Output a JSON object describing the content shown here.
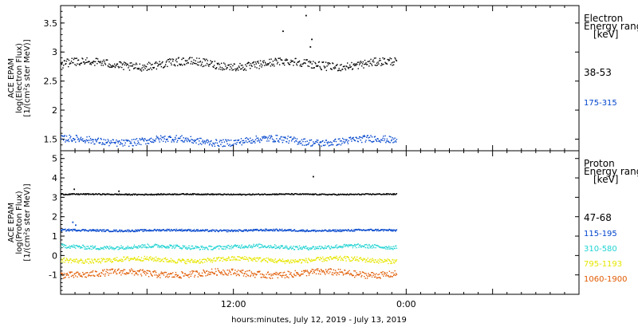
{
  "xlabel": "hours:minutes, July 12, 2019 - July 13, 2019",
  "x_ticks": [
    {
      "label": "12:00",
      "hour": 12
    },
    {
      "label": "0:00",
      "hour": 24
    }
  ],
  "chart_data": [
    {
      "type": "scatter",
      "panel": "electron",
      "ylabel": [
        "ACE EPAM",
        "log(Electron Flux)",
        "[1/(cm²s ster MeV)]"
      ],
      "ylim": [
        1.3,
        3.8
      ],
      "yticks": [
        1.5,
        2.0,
        2.5,
        3.0,
        3.5
      ],
      "xlim_hours": [
        0,
        36
      ],
      "legend": {
        "title": [
          "Electron",
          "Energy ranges",
          "[keV]"
        ]
      },
      "series": [
        {
          "name": "38-53",
          "color": "#000000",
          "base": 2.8,
          "amp": 0.05,
          "noise": 0.07,
          "x_start_hours": 0,
          "x_end_hours": 23.3,
          "outliers": [
            {
              "x": 15.4,
              "y": 3.37
            },
            {
              "x": 17.0,
              "y": 3.64
            },
            {
              "x": 17.4,
              "y": 3.23
            },
            {
              "x": 17.3,
              "y": 3.1
            }
          ]
        },
        {
          "name": "175-315",
          "color": "#0044cc",
          "base": 1.48,
          "amp": 0.04,
          "noise": 0.06,
          "x_start_hours": 0,
          "x_end_hours": 23.3,
          "outliers": []
        }
      ]
    },
    {
      "type": "scatter",
      "panel": "proton",
      "ylabel": [
        "ACE EPAM",
        "log(Proton Flux)",
        "[1/(cm²s ster MeV)]"
      ],
      "ylim": [
        -2.0,
        5.4
      ],
      "yticks": [
        -1,
        0,
        1,
        2,
        3,
        4,
        5
      ],
      "xlim_hours": [
        0,
        36
      ],
      "legend": {
        "title": [
          "Proton",
          "Energy ranges",
          "[keV]"
        ]
      },
      "series": [
        {
          "name": "47-68",
          "color": "#000000",
          "base": 3.18,
          "amp": 0.01,
          "noise": 0.03,
          "x_start_hours": 0,
          "x_end_hours": 23.3,
          "outliers": [
            {
              "x": 0.9,
              "y": 3.45
            },
            {
              "x": 4.0,
              "y": 3.35
            },
            {
              "x": 17.5,
              "y": 4.1
            }
          ]
        },
        {
          "name": "115-195",
          "color": "#0044cc",
          "base": 1.32,
          "amp": 0.02,
          "noise": 0.05,
          "x_start_hours": 0,
          "x_end_hours": 23.3,
          "outliers": [
            {
              "x": 0.8,
              "y": 1.75
            },
            {
              "x": 1.0,
              "y": 1.6
            }
          ]
        },
        {
          "name": "310-580",
          "color": "#22d3d3",
          "base": 0.47,
          "amp": 0.05,
          "noise": 0.1,
          "x_start_hours": 0,
          "x_end_hours": 23.3,
          "outliers": []
        },
        {
          "name": "795-1193",
          "color": "#e6e600",
          "base": -0.2,
          "amp": 0.07,
          "noise": 0.12,
          "x_start_hours": 0,
          "x_end_hours": 23.3,
          "outliers": []
        },
        {
          "name": "1060-1900",
          "color": "#e05a00",
          "base": -0.9,
          "amp": 0.09,
          "noise": 0.17,
          "x_start_hours": 0,
          "x_end_hours": 23.3,
          "outliers": []
        }
      ]
    }
  ]
}
